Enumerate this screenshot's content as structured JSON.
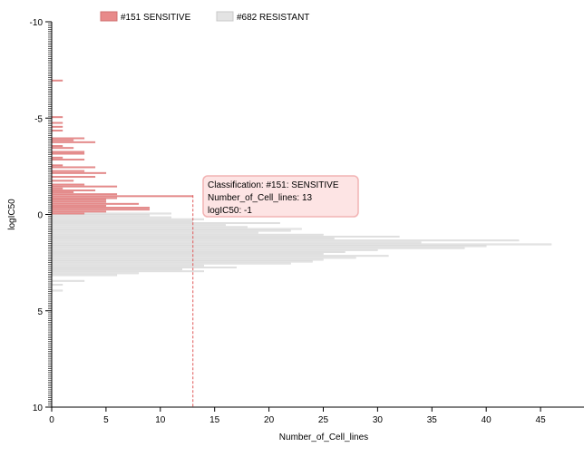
{
  "chart_data": {
    "type": "bar",
    "orientation": "horizontal",
    "xlabel": "Number_of_Cell_lines",
    "ylabel": "logIC50",
    "xlim": [
      0,
      49
    ],
    "ylim": [
      -10,
      10
    ],
    "y_inverted": true,
    "x_ticks": [
      "0",
      "5",
      "10",
      "15",
      "20",
      "25",
      "30",
      "35",
      "40",
      "45"
    ],
    "x_tick_values": [
      0,
      5,
      10,
      15,
      20,
      25,
      30,
      35,
      40,
      45
    ],
    "y_ticks": [
      "-10",
      "-5",
      "0",
      "5",
      "10"
    ],
    "y_tick_values": [
      -10,
      -5,
      0,
      5,
      10
    ],
    "bin_width": 0.1,
    "legend_position": "top",
    "series": [
      {
        "name": "#151 SENSITIVE",
        "color": "#e88a8a",
        "points": [
          {
            "y": -7.0,
            "x": 1
          },
          {
            "y": -5.1,
            "x": 1
          },
          {
            "y": -4.8,
            "x": 1
          },
          {
            "y": -4.6,
            "x": 1
          },
          {
            "y": -4.4,
            "x": 1
          },
          {
            "y": -4.0,
            "x": 3
          },
          {
            "y": -3.9,
            "x": 2
          },
          {
            "y": -3.8,
            "x": 4
          },
          {
            "y": -3.6,
            "x": 1
          },
          {
            "y": -3.5,
            "x": 2
          },
          {
            "y": -3.3,
            "x": 3
          },
          {
            "y": -3.2,
            "x": 3
          },
          {
            "y": -3.0,
            "x": 1
          },
          {
            "y": -2.9,
            "x": 3
          },
          {
            "y": -2.6,
            "x": 1
          },
          {
            "y": -2.5,
            "x": 4
          },
          {
            "y": -2.3,
            "x": 3
          },
          {
            "y": -2.2,
            "x": 5
          },
          {
            "y": -2.0,
            "x": 4
          },
          {
            "y": -1.8,
            "x": 2
          },
          {
            "y": -1.6,
            "x": 3
          },
          {
            "y": -1.5,
            "x": 6
          },
          {
            "y": -1.4,
            "x": 1
          },
          {
            "y": -1.3,
            "x": 4
          },
          {
            "y": -1.2,
            "x": 2
          },
          {
            "y": -1.1,
            "x": 6
          },
          {
            "y": -1.0,
            "x": 13
          },
          {
            "y": -0.9,
            "x": 6
          },
          {
            "y": -0.8,
            "x": 5
          },
          {
            "y": -0.7,
            "x": 5
          },
          {
            "y": -0.6,
            "x": 8
          },
          {
            "y": -0.5,
            "x": 5
          },
          {
            "y": -0.4,
            "x": 9
          },
          {
            "y": -0.3,
            "x": 9
          },
          {
            "y": -0.2,
            "x": 5
          },
          {
            "y": -0.1,
            "x": 3
          }
        ]
      },
      {
        "name": "#682 RESISTANT",
        "color": "#e3e3e3",
        "points": [
          {
            "y": -0.1,
            "x": 11
          },
          {
            "y": 0.0,
            "x": 9
          },
          {
            "y": 0.1,
            "x": 11
          },
          {
            "y": 0.2,
            "x": 14
          },
          {
            "y": 0.3,
            "x": 13
          },
          {
            "y": 0.4,
            "x": 21
          },
          {
            "y": 0.5,
            "x": 16
          },
          {
            "y": 0.6,
            "x": 18
          },
          {
            "y": 0.7,
            "x": 23
          },
          {
            "y": 0.8,
            "x": 22
          },
          {
            "y": 0.9,
            "x": 19
          },
          {
            "y": 1.0,
            "x": 25
          },
          {
            "y": 1.1,
            "x": 32
          },
          {
            "y": 1.2,
            "x": 26
          },
          {
            "y": 1.3,
            "x": 43
          },
          {
            "y": 1.4,
            "x": 34
          },
          {
            "y": 1.5,
            "x": 46
          },
          {
            "y": 1.6,
            "x": 40
          },
          {
            "y": 1.7,
            "x": 38
          },
          {
            "y": 1.8,
            "x": 30
          },
          {
            "y": 1.9,
            "x": 27
          },
          {
            "y": 2.0,
            "x": 25
          },
          {
            "y": 2.1,
            "x": 31
          },
          {
            "y": 2.2,
            "x": 28
          },
          {
            "y": 2.3,
            "x": 25
          },
          {
            "y": 2.4,
            "x": 24
          },
          {
            "y": 2.5,
            "x": 22
          },
          {
            "y": 2.6,
            "x": 14
          },
          {
            "y": 2.7,
            "x": 17
          },
          {
            "y": 2.8,
            "x": 12
          },
          {
            "y": 2.9,
            "x": 14
          },
          {
            "y": 3.0,
            "x": 8
          },
          {
            "y": 3.1,
            "x": 6
          },
          {
            "y": 3.4,
            "x": 3
          },
          {
            "y": 3.6,
            "x": 1
          },
          {
            "y": 3.9,
            "x": 1
          }
        ]
      }
    ],
    "annotations": {
      "highlight_x": 13,
      "highlight_y": -1.0,
      "tooltip": {
        "line1": "Classification: #151: SENSITIVE",
        "line2": "Number_of_Cell_lines: 13",
        "line3": "logIC50: -1"
      }
    }
  }
}
